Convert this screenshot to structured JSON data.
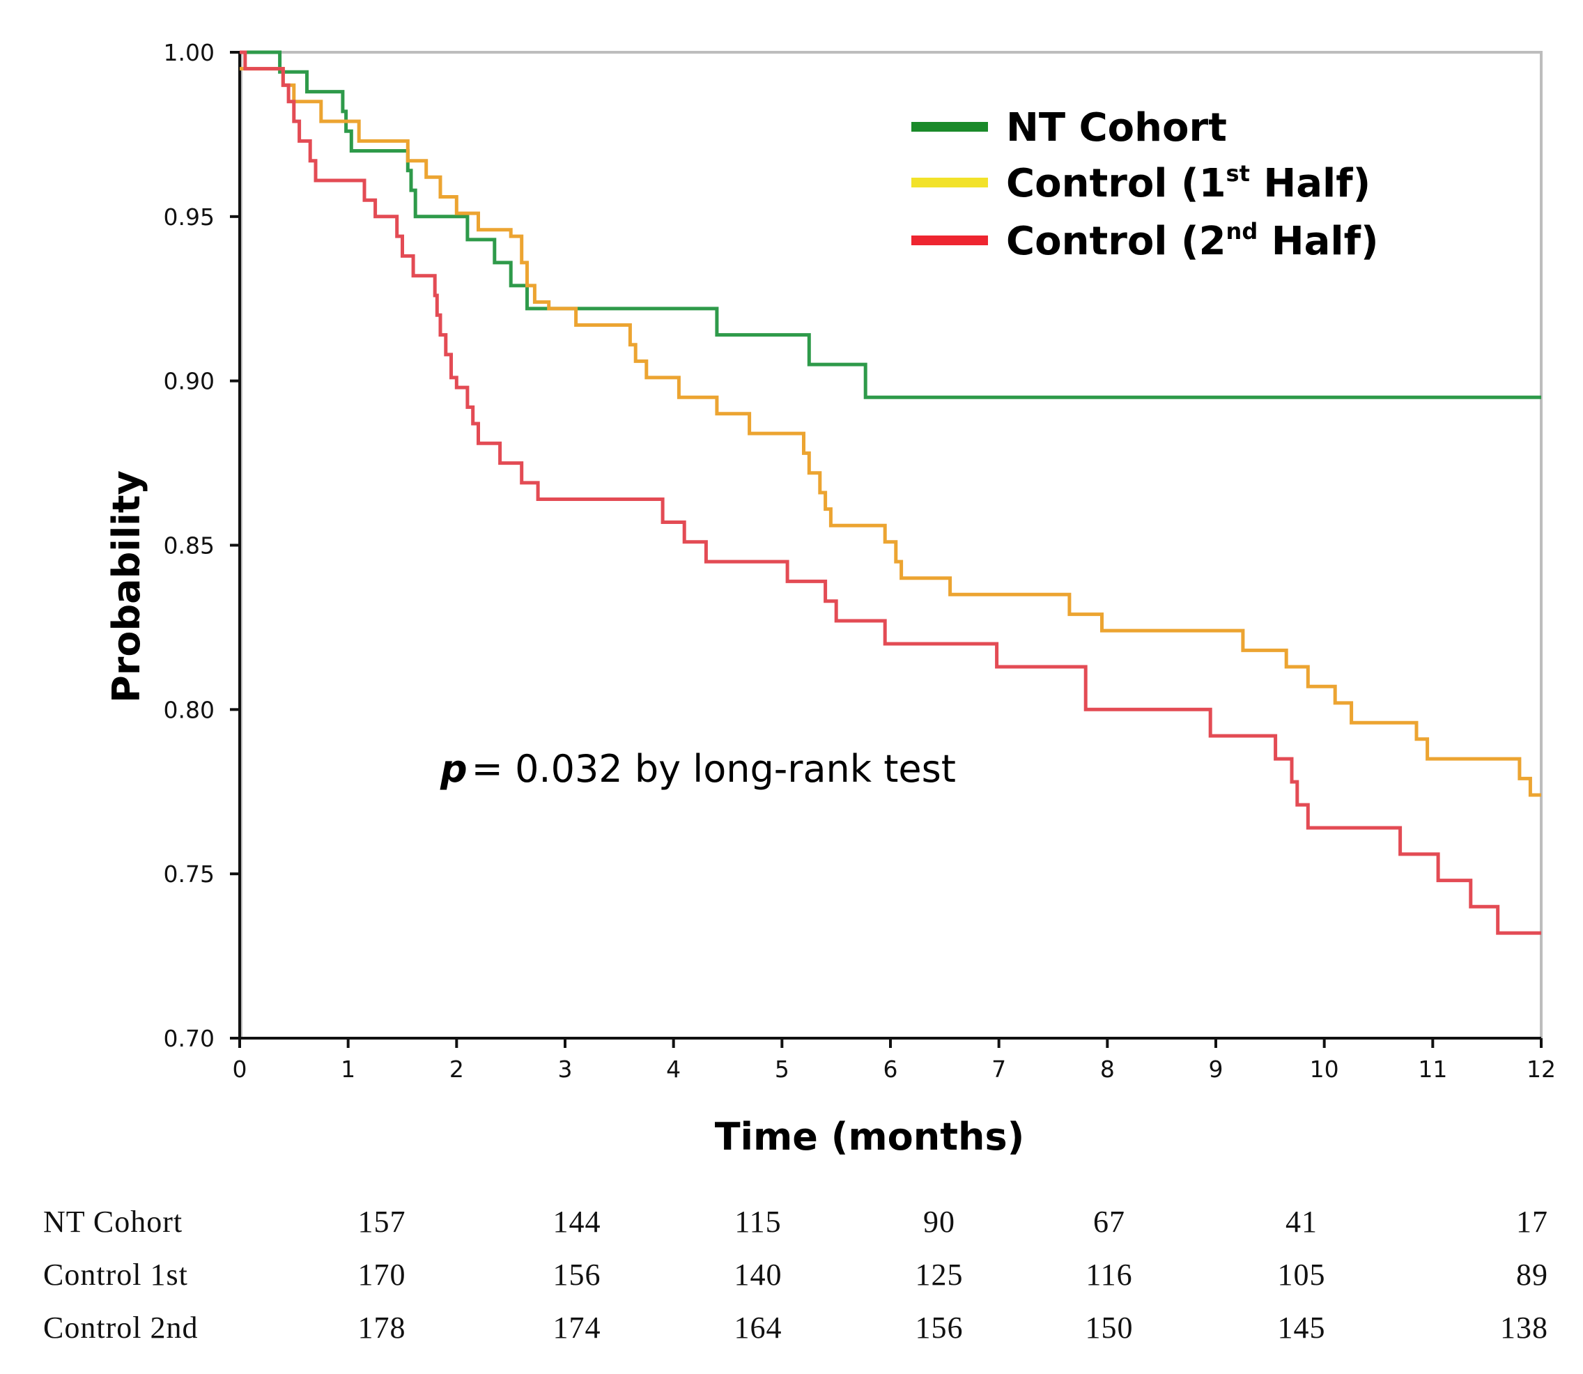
{
  "chart_data": {
    "type": "line",
    "subtype": "kaplan-meier step",
    "xlabel": "Time (months)",
    "ylabel": "Probability",
    "xlim": [
      0,
      12
    ],
    "ylim": [
      0.7,
      1.0
    ],
    "x_ticks": [
      0,
      1,
      2,
      3,
      4,
      5,
      6,
      7,
      8,
      9,
      10,
      11,
      12
    ],
    "y_ticks": [
      "0.70",
      "0.75",
      "0.80",
      "0.85",
      "0.90",
      "0.95",
      "1.00"
    ],
    "grid": false,
    "legend_position": "top-right",
    "annotation": {
      "p_symbol": "p",
      "text": "= 0.032 by long-rank test"
    },
    "series": [
      {
        "name": "NT Cohort",
        "legend_base": "NT Cohort",
        "legend_sup": "",
        "legend_tail": "",
        "color": "#2e9a4a",
        "legend_color": "#1a8a2a",
        "points": [
          [
            0,
            1.0
          ],
          [
            0.37,
            1.0
          ],
          [
            0.37,
            0.994
          ],
          [
            0.62,
            0.994
          ],
          [
            0.62,
            0.988
          ],
          [
            0.95,
            0.988
          ],
          [
            0.95,
            0.982
          ],
          [
            0.98,
            0.982
          ],
          [
            0.98,
            0.976
          ],
          [
            1.03,
            0.976
          ],
          [
            1.03,
            0.97
          ],
          [
            1.55,
            0.97
          ],
          [
            1.55,
            0.964
          ],
          [
            1.58,
            0.964
          ],
          [
            1.58,
            0.958
          ],
          [
            1.62,
            0.958
          ],
          [
            1.62,
            0.95
          ],
          [
            2.1,
            0.95
          ],
          [
            2.1,
            0.943
          ],
          [
            2.35,
            0.943
          ],
          [
            2.35,
            0.936
          ],
          [
            2.5,
            0.936
          ],
          [
            2.5,
            0.929
          ],
          [
            2.65,
            0.929
          ],
          [
            2.65,
            0.922
          ],
          [
            4.4,
            0.922
          ],
          [
            4.4,
            0.914
          ],
          [
            5.25,
            0.914
          ],
          [
            5.25,
            0.905
          ],
          [
            5.77,
            0.905
          ],
          [
            5.77,
            0.895
          ],
          [
            12,
            0.895
          ]
        ]
      },
      {
        "name": "Control (1st Half)",
        "legend_base": "Control (1",
        "legend_sup": "st",
        "legend_tail": " Half)",
        "color": "#eca431",
        "legend_color": "#f2e22a",
        "points": [
          [
            0,
            0.995
          ],
          [
            0.4,
            0.995
          ],
          [
            0.4,
            0.99
          ],
          [
            0.5,
            0.99
          ],
          [
            0.5,
            0.985
          ],
          [
            0.75,
            0.985
          ],
          [
            0.75,
            0.979
          ],
          [
            1.1,
            0.979
          ],
          [
            1.1,
            0.973
          ],
          [
            1.55,
            0.973
          ],
          [
            1.55,
            0.967
          ],
          [
            1.72,
            0.967
          ],
          [
            1.72,
            0.962
          ],
          [
            1.85,
            0.962
          ],
          [
            1.85,
            0.956
          ],
          [
            2.0,
            0.956
          ],
          [
            2.0,
            0.951
          ],
          [
            2.2,
            0.951
          ],
          [
            2.2,
            0.946
          ],
          [
            2.5,
            0.946
          ],
          [
            2.5,
            0.944
          ],
          [
            2.6,
            0.944
          ],
          [
            2.6,
            0.936
          ],
          [
            2.65,
            0.936
          ],
          [
            2.65,
            0.929
          ],
          [
            2.72,
            0.929
          ],
          [
            2.72,
            0.924
          ],
          [
            2.85,
            0.924
          ],
          [
            2.85,
            0.922
          ],
          [
            3.1,
            0.922
          ],
          [
            3.1,
            0.917
          ],
          [
            3.6,
            0.917
          ],
          [
            3.6,
            0.911
          ],
          [
            3.65,
            0.911
          ],
          [
            3.65,
            0.906
          ],
          [
            3.75,
            0.906
          ],
          [
            3.75,
            0.901
          ],
          [
            4.05,
            0.901
          ],
          [
            4.05,
            0.895
          ],
          [
            4.4,
            0.895
          ],
          [
            4.4,
            0.89
          ],
          [
            4.7,
            0.89
          ],
          [
            4.7,
            0.884
          ],
          [
            5.2,
            0.884
          ],
          [
            5.2,
            0.878
          ],
          [
            5.25,
            0.878
          ],
          [
            5.25,
            0.872
          ],
          [
            5.35,
            0.872
          ],
          [
            5.35,
            0.866
          ],
          [
            5.4,
            0.866
          ],
          [
            5.4,
            0.861
          ],
          [
            5.45,
            0.861
          ],
          [
            5.45,
            0.856
          ],
          [
            5.95,
            0.856
          ],
          [
            5.95,
            0.851
          ],
          [
            6.05,
            0.851
          ],
          [
            6.05,
            0.845
          ],
          [
            6.1,
            0.845
          ],
          [
            6.1,
            0.84
          ],
          [
            6.55,
            0.84
          ],
          [
            6.55,
            0.835
          ],
          [
            7.65,
            0.835
          ],
          [
            7.65,
            0.829
          ],
          [
            7.95,
            0.829
          ],
          [
            7.95,
            0.824
          ],
          [
            9.25,
            0.824
          ],
          [
            9.25,
            0.818
          ],
          [
            9.65,
            0.818
          ],
          [
            9.65,
            0.813
          ],
          [
            9.85,
            0.813
          ],
          [
            9.85,
            0.807
          ],
          [
            10.1,
            0.807
          ],
          [
            10.1,
            0.802
          ],
          [
            10.25,
            0.802
          ],
          [
            10.25,
            0.796
          ],
          [
            10.85,
            0.796
          ],
          [
            10.85,
            0.791
          ],
          [
            10.95,
            0.791
          ],
          [
            10.95,
            0.785
          ],
          [
            11.8,
            0.785
          ],
          [
            11.8,
            0.779
          ],
          [
            11.9,
            0.779
          ],
          [
            11.9,
            0.774
          ],
          [
            12,
            0.774
          ]
        ]
      },
      {
        "name": "Control (2nd Half)",
        "legend_base": "Control (2",
        "legend_sup": "nd",
        "legend_tail": " Half)",
        "color": "#e34b54",
        "legend_color": "#ee2530",
        "points": [
          [
            0,
            1.0
          ],
          [
            0.05,
            1.0
          ],
          [
            0.05,
            0.995
          ],
          [
            0.4,
            0.995
          ],
          [
            0.4,
            0.99
          ],
          [
            0.45,
            0.99
          ],
          [
            0.45,
            0.985
          ],
          [
            0.5,
            0.985
          ],
          [
            0.5,
            0.979
          ],
          [
            0.55,
            0.979
          ],
          [
            0.55,
            0.973
          ],
          [
            0.65,
            0.973
          ],
          [
            0.65,
            0.967
          ],
          [
            0.7,
            0.967
          ],
          [
            0.7,
            0.961
          ],
          [
            1.15,
            0.961
          ],
          [
            1.15,
            0.955
          ],
          [
            1.25,
            0.955
          ],
          [
            1.25,
            0.95
          ],
          [
            1.45,
            0.95
          ],
          [
            1.45,
            0.944
          ],
          [
            1.5,
            0.944
          ],
          [
            1.5,
            0.938
          ],
          [
            1.6,
            0.938
          ],
          [
            1.6,
            0.932
          ],
          [
            1.8,
            0.932
          ],
          [
            1.8,
            0.926
          ],
          [
            1.82,
            0.926
          ],
          [
            1.82,
            0.92
          ],
          [
            1.85,
            0.92
          ],
          [
            1.85,
            0.914
          ],
          [
            1.9,
            0.914
          ],
          [
            1.9,
            0.908
          ],
          [
            1.95,
            0.908
          ],
          [
            1.95,
            0.901
          ],
          [
            2.0,
            0.901
          ],
          [
            2.0,
            0.898
          ],
          [
            2.1,
            0.898
          ],
          [
            2.1,
            0.892
          ],
          [
            2.15,
            0.892
          ],
          [
            2.15,
            0.887
          ],
          [
            2.2,
            0.887
          ],
          [
            2.2,
            0.881
          ],
          [
            2.4,
            0.881
          ],
          [
            2.4,
            0.875
          ],
          [
            2.6,
            0.875
          ],
          [
            2.6,
            0.869
          ],
          [
            2.75,
            0.869
          ],
          [
            2.75,
            0.864
          ],
          [
            3.9,
            0.864
          ],
          [
            3.9,
            0.857
          ],
          [
            4.1,
            0.857
          ],
          [
            4.1,
            0.851
          ],
          [
            4.3,
            0.851
          ],
          [
            4.3,
            0.845
          ],
          [
            5.05,
            0.845
          ],
          [
            5.05,
            0.839
          ],
          [
            5.4,
            0.839
          ],
          [
            5.4,
            0.833
          ],
          [
            5.5,
            0.833
          ],
          [
            5.5,
            0.827
          ],
          [
            5.95,
            0.827
          ],
          [
            5.95,
            0.82
          ],
          [
            6.98,
            0.82
          ],
          [
            6.98,
            0.813
          ],
          [
            7.8,
            0.813
          ],
          [
            7.8,
            0.8
          ],
          [
            8.95,
            0.8
          ],
          [
            8.95,
            0.792
          ],
          [
            9.55,
            0.792
          ],
          [
            9.55,
            0.785
          ],
          [
            9.7,
            0.785
          ],
          [
            9.7,
            0.778
          ],
          [
            9.75,
            0.778
          ],
          [
            9.75,
            0.771
          ],
          [
            9.85,
            0.771
          ],
          [
            9.85,
            0.764
          ],
          [
            10.7,
            0.764
          ],
          [
            10.7,
            0.756
          ],
          [
            11.05,
            0.756
          ],
          [
            11.05,
            0.748
          ],
          [
            11.35,
            0.748
          ],
          [
            11.35,
            0.74
          ],
          [
            11.6,
            0.74
          ],
          [
            11.6,
            0.732
          ],
          [
            12,
            0.732
          ]
        ]
      }
    ]
  },
  "risk_table": {
    "rows": [
      {
        "label": "NT Cohort",
        "values": [
          "157",
          "144",
          "115",
          "90",
          "67",
          "41",
          "17"
        ]
      },
      {
        "label": "Control 1st",
        "values": [
          "170",
          "156",
          "140",
          "125",
          "116",
          "105",
          "89"
        ]
      },
      {
        "label": "Control 2nd",
        "values": [
          "178",
          "174",
          "164",
          "156",
          "150",
          "145",
          "138"
        ]
      }
    ]
  }
}
